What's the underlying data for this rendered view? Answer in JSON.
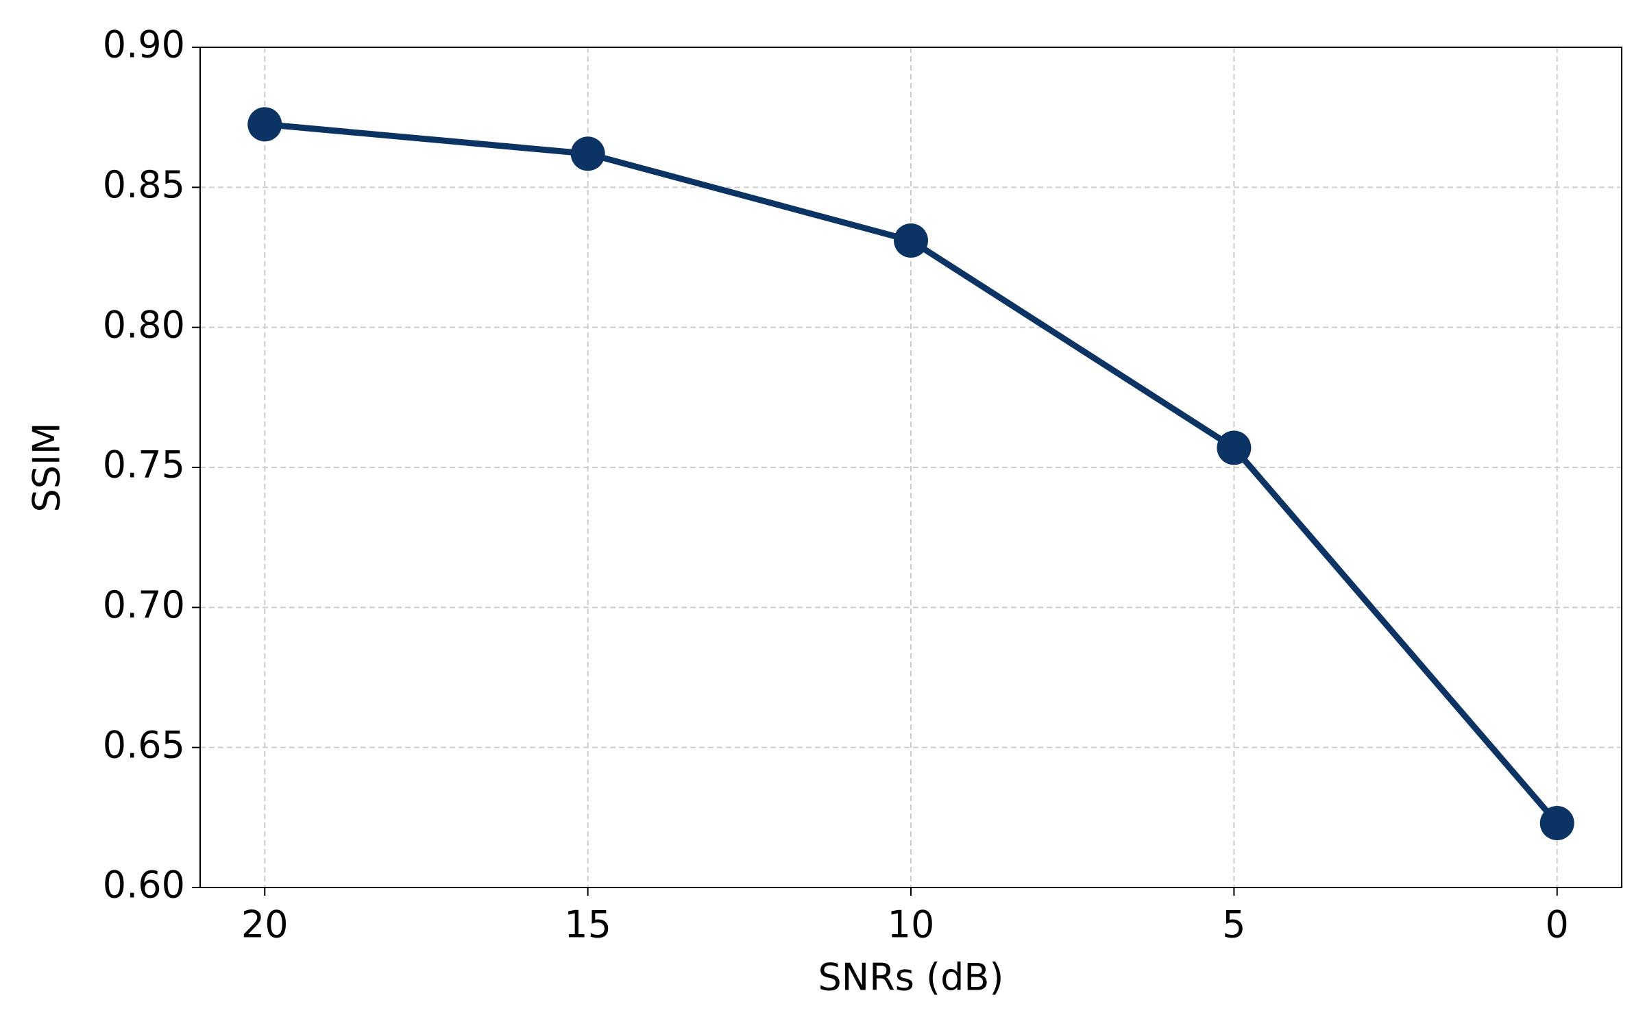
{
  "chart_data": {
    "type": "line",
    "xlabel": "SNRs (dB)",
    "ylabel": "SSIM",
    "x": [
      20,
      15,
      10,
      5,
      0
    ],
    "values": [
      0.8725,
      0.862,
      0.831,
      0.757,
      0.623
    ],
    "color": "#0b3363",
    "xlim": [
      21,
      -1
    ],
    "xticks": [
      20,
      15,
      10,
      5,
      0
    ],
    "ylim": [
      0.6,
      0.9
    ],
    "yticks": [
      {
        "value": 0.6,
        "label": "0.60"
      },
      0.65,
      {
        "value": 0.7,
        "label": "0.70"
      },
      0.75,
      {
        "value": 0.8,
        "label": "0.80"
      },
      0.85,
      {
        "value": 0.9,
        "label": "0.90"
      }
    ],
    "grid": true
  }
}
